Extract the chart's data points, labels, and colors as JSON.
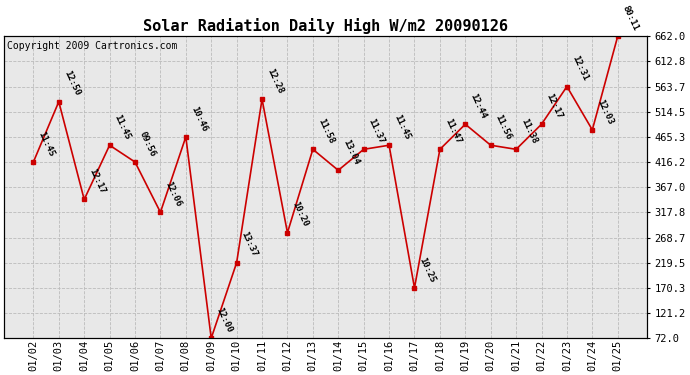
{
  "title": "Solar Radiation Daily High W/m2 20090126",
  "copyright_text": "Copyright 2009 Cartronics.com",
  "dates": [
    "01/02",
    "01/03",
    "01/04",
    "01/05",
    "01/06",
    "01/07",
    "01/08",
    "01/09",
    "01/10",
    "01/11",
    "01/12",
    "01/13",
    "01/14",
    "01/15",
    "01/16",
    "01/17",
    "01/18",
    "01/19",
    "01/20",
    "01/21",
    "01/22",
    "01/23",
    "01/24",
    "01/25"
  ],
  "values": [
    416.2,
    534.0,
    343.0,
    449.0,
    416.2,
    318.0,
    465.3,
    72.0,
    219.5,
    539.0,
    278.0,
    441.0,
    400.0,
    441.0,
    449.0,
    170.3,
    441.0,
    490.0,
    449.0,
    441.0,
    490.0,
    563.7,
    479.0,
    662.0
  ],
  "labels": [
    "11:45",
    "12:50",
    "12:17",
    "11:45",
    "09:56",
    "12:06",
    "10:46",
    "12:00",
    "13:37",
    "12:28",
    "10:20",
    "11:58",
    "13:04",
    "11:37",
    "11:45",
    "10:25",
    "11:47",
    "12:44",
    "11:56",
    "11:38",
    "12:17",
    "12:31",
    "12:03",
    "80:11"
  ],
  "ylim_min": 72.0,
  "ylim_max": 662.0,
  "yticks": [
    72.0,
    121.2,
    170.3,
    219.5,
    268.7,
    317.8,
    367.0,
    416.2,
    465.3,
    514.5,
    563.7,
    612.8,
    662.0
  ],
  "line_color": "#cc0000",
  "marker_color": "#cc0000",
  "bg_color": "#ffffff",
  "plot_bg_color": "#e8e8e8",
  "grid_color": "#bbbbbb",
  "title_fontsize": 11,
  "label_fontsize": 6.5,
  "copyright_fontsize": 7,
  "tick_fontsize": 7.5
}
